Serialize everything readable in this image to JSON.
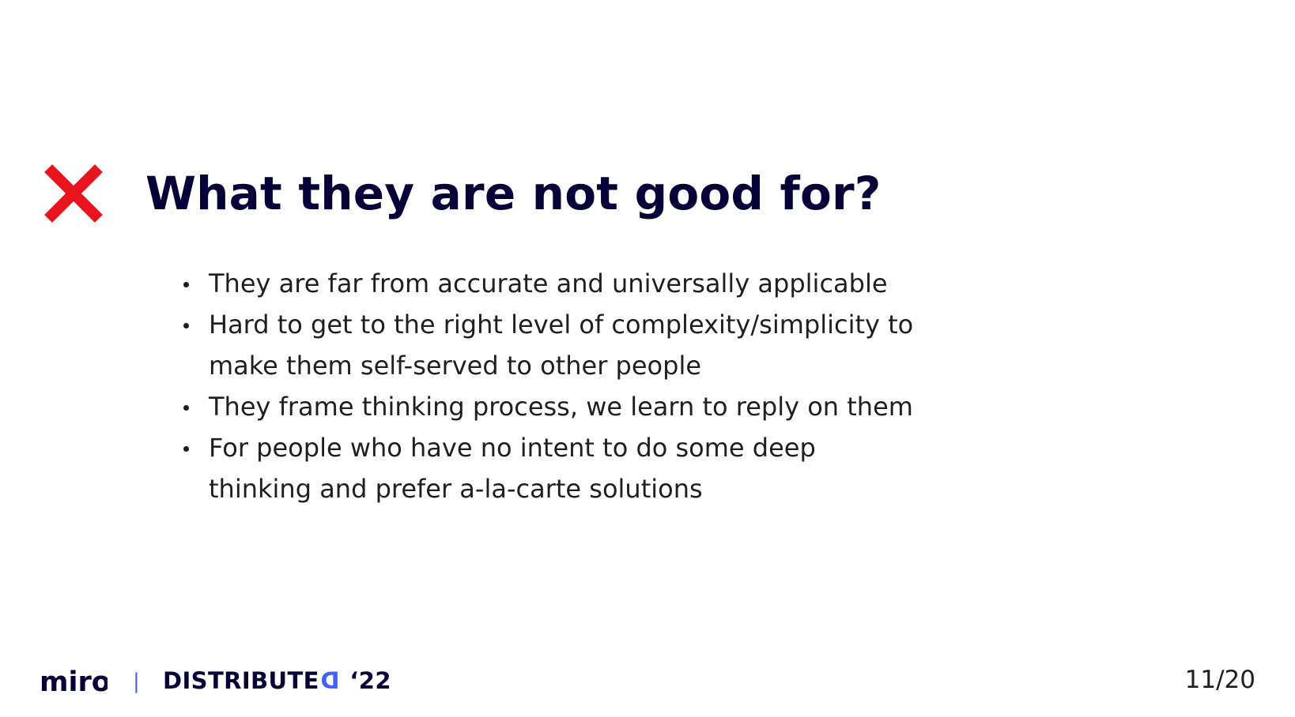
{
  "slide": {
    "title": "What they are not good for?",
    "title_icon": "cross-icon",
    "title_icon_color": "#e8131b",
    "title_color": "#050038",
    "bullets": [
      {
        "text_lines": [
          "They are far from accurate and universally applicable"
        ]
      },
      {
        "text_lines": [
          "Hard to get to the right level of complexity/simplicity to",
          "make them self-served to other people"
        ]
      },
      {
        "text_lines": [
          "They frame thinking process, we learn to reply on them"
        ]
      },
      {
        "text_lines": [
          "For people who have no intent to do some deep",
          "thinking and prefer a-la-carte solutions"
        ]
      }
    ]
  },
  "footer": {
    "brand_logo_text": "miro",
    "brand_logo_icon": "miro-logo",
    "divider": "|",
    "event_name_main": "DISTRIBUTE",
    "event_name_accent": "D",
    "event_year": "‘22",
    "accent_color": "#4262ff",
    "page_number": "11/20"
  }
}
